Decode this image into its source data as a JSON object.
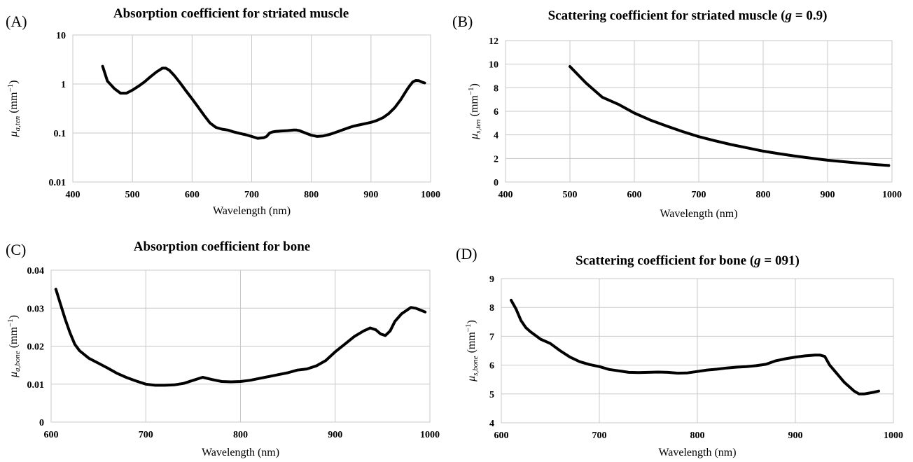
{
  "chart_data": [
    {
      "panel": "(A)",
      "type": "line",
      "title": "Absorption coefficient for striated muscle",
      "xlabel": "Wavelength (nm)",
      "ylabel": {
        "base": "μ",
        "sub": "a,ten",
        "unit": " (mm",
        "sup": "−1",
        "close": ")"
      },
      "xlim": [
        400,
        1000
      ],
      "xticks": [
        400,
        500,
        600,
        700,
        800,
        900,
        1000
      ],
      "ylim": [
        0.01,
        10
      ],
      "yscale": "log",
      "yticks": [
        0.01,
        0.1,
        1,
        10
      ],
      "yticklabels": [
        "0.01",
        "0.1",
        "1",
        "10"
      ],
      "grid": true,
      "series": [
        {
          "x": [
            450,
            458,
            470,
            480,
            490,
            500,
            510,
            520,
            530,
            540,
            550,
            556,
            562,
            570,
            580,
            590,
            600,
            610,
            620,
            630,
            640,
            650,
            660,
            670,
            680,
            690,
            700,
            710,
            720,
            725,
            730,
            735,
            740,
            750,
            760,
            770,
            775,
            780,
            790,
            800,
            810,
            820,
            830,
            840,
            850,
            860,
            870,
            880,
            890,
            900,
            910,
            920,
            930,
            940,
            950,
            960,
            965,
            970,
            975,
            980,
            985,
            990
          ],
          "y": [
            2.3,
            1.15,
            0.8,
            0.65,
            0.65,
            0.75,
            0.9,
            1.1,
            1.4,
            1.75,
            2.1,
            2.1,
            1.9,
            1.5,
            1.05,
            0.72,
            0.5,
            0.34,
            0.23,
            0.16,
            0.13,
            0.12,
            0.115,
            0.105,
            0.098,
            0.092,
            0.085,
            0.078,
            0.08,
            0.085,
            0.1,
            0.105,
            0.108,
            0.11,
            0.112,
            0.115,
            0.115,
            0.112,
            0.1,
            0.09,
            0.085,
            0.087,
            0.093,
            0.102,
            0.113,
            0.125,
            0.137,
            0.146,
            0.155,
            0.165,
            0.18,
            0.205,
            0.25,
            0.33,
            0.48,
            0.75,
            0.92,
            1.1,
            1.18,
            1.17,
            1.1,
            1.05
          ]
        }
      ]
    },
    {
      "panel": "(B)",
      "type": "line",
      "title": {
        "pre": "Scattering coefficient for striated muscle (",
        "italic": "g",
        "post": " = 0.9)"
      },
      "xlabel": "Wavelength (nm)",
      "ylabel": {
        "base": "μ",
        "sub": "s,ten",
        "unit": " (mm",
        "sup": "−1",
        "close": ")"
      },
      "xlim": [
        400,
        1000
      ],
      "xticks": [
        400,
        500,
        600,
        700,
        800,
        900,
        1000
      ],
      "ylim": [
        0,
        12
      ],
      "yticks": [
        0,
        2,
        4,
        6,
        8,
        10,
        12
      ],
      "yticklabels": [
        "0",
        "2",
        "4",
        "6",
        "8",
        "10",
        "12"
      ],
      "grid": true,
      "series": [
        {
          "x": [
            500,
            525,
            550,
            575,
            600,
            625,
            650,
            675,
            700,
            725,
            750,
            775,
            800,
            825,
            850,
            875,
            900,
            925,
            950,
            975,
            995
          ],
          "y": [
            9.8,
            8.4,
            7.2,
            6.6,
            5.85,
            5.25,
            4.75,
            4.28,
            3.85,
            3.5,
            3.18,
            2.9,
            2.62,
            2.4,
            2.2,
            2.02,
            1.85,
            1.72,
            1.6,
            1.48,
            1.4
          ]
        }
      ]
    },
    {
      "panel": "(C)",
      "type": "line",
      "title": "Absorption coefficient for bone",
      "xlabel": "Wavelength (nm)",
      "ylabel": {
        "base": "μ",
        "sub": "a,bone",
        "unit": " (mm",
        "sup": "−1",
        "close": ")"
      },
      "xlim": [
        600,
        1000
      ],
      "xticks": [
        600,
        700,
        800,
        900,
        1000
      ],
      "ylim": [
        0,
        0.04
      ],
      "yticks": [
        0,
        0.01,
        0.02,
        0.03,
        0.04
      ],
      "yticklabels": [
        "0",
        "0.01",
        "0.02",
        "0.03",
        "0.04"
      ],
      "grid": true,
      "series": [
        {
          "x": [
            605,
            610,
            615,
            620,
            625,
            630,
            640,
            650,
            660,
            670,
            680,
            690,
            700,
            710,
            720,
            730,
            740,
            750,
            760,
            770,
            780,
            790,
            800,
            810,
            820,
            830,
            840,
            850,
            860,
            870,
            880,
            890,
            900,
            910,
            920,
            930,
            937,
            943,
            948,
            953,
            958,
            963,
            970,
            980,
            985,
            990,
            995
          ],
          "y": [
            0.035,
            0.031,
            0.027,
            0.0235,
            0.0205,
            0.0188,
            0.0168,
            0.0155,
            0.0142,
            0.0128,
            0.0117,
            0.0108,
            0.01,
            0.0097,
            0.0097,
            0.0098,
            0.0102,
            0.011,
            0.0118,
            0.0112,
            0.0107,
            0.0106,
            0.0107,
            0.011,
            0.0115,
            0.012,
            0.0125,
            0.013,
            0.0137,
            0.014,
            0.0148,
            0.0162,
            0.0185,
            0.0205,
            0.0225,
            0.024,
            0.0248,
            0.0243,
            0.0232,
            0.0228,
            0.024,
            0.0265,
            0.0285,
            0.0302,
            0.03,
            0.0295,
            0.029
          ]
        }
      ]
    },
    {
      "panel": "(D)",
      "type": "line",
      "title": {
        "pre": "Scattering coefficient for bone (",
        "italic": "g",
        "post": " = 091)"
      },
      "xlabel": "Wavelength (nm)",
      "ylabel": {
        "base": "μ",
        "sub": "s,bone",
        "unit": " (mm",
        "sup": "−1",
        "close": ")"
      },
      "xlim": [
        600,
        1000
      ],
      "xticks": [
        600,
        700,
        800,
        900,
        1000
      ],
      "ylim": [
        4,
        9
      ],
      "yticks": [
        4,
        5,
        6,
        7,
        8,
        9
      ],
      "yticklabels": [
        "4",
        "5",
        "6",
        "7",
        "8",
        "9"
      ],
      "grid": true,
      "series": [
        {
          "x": [
            610,
            615,
            620,
            625,
            630,
            640,
            650,
            660,
            670,
            680,
            690,
            700,
            710,
            720,
            730,
            740,
            750,
            760,
            770,
            780,
            790,
            800,
            810,
            820,
            830,
            840,
            850,
            860,
            870,
            880,
            890,
            900,
            910,
            920,
            925,
            930,
            935,
            940,
            950,
            960,
            965,
            970,
            975,
            980,
            985
          ],
          "y": [
            8.25,
            7.95,
            7.55,
            7.3,
            7.15,
            6.9,
            6.75,
            6.5,
            6.28,
            6.12,
            6.02,
            5.95,
            5.85,
            5.8,
            5.75,
            5.74,
            5.75,
            5.76,
            5.75,
            5.72,
            5.73,
            5.78,
            5.83,
            5.86,
            5.9,
            5.93,
            5.95,
            5.98,
            6.03,
            6.15,
            6.22,
            6.28,
            6.32,
            6.35,
            6.35,
            6.3,
            6.0,
            5.8,
            5.4,
            5.1,
            5.0,
            5.0,
            5.03,
            5.06,
            5.1
          ]
        }
      ]
    }
  ]
}
